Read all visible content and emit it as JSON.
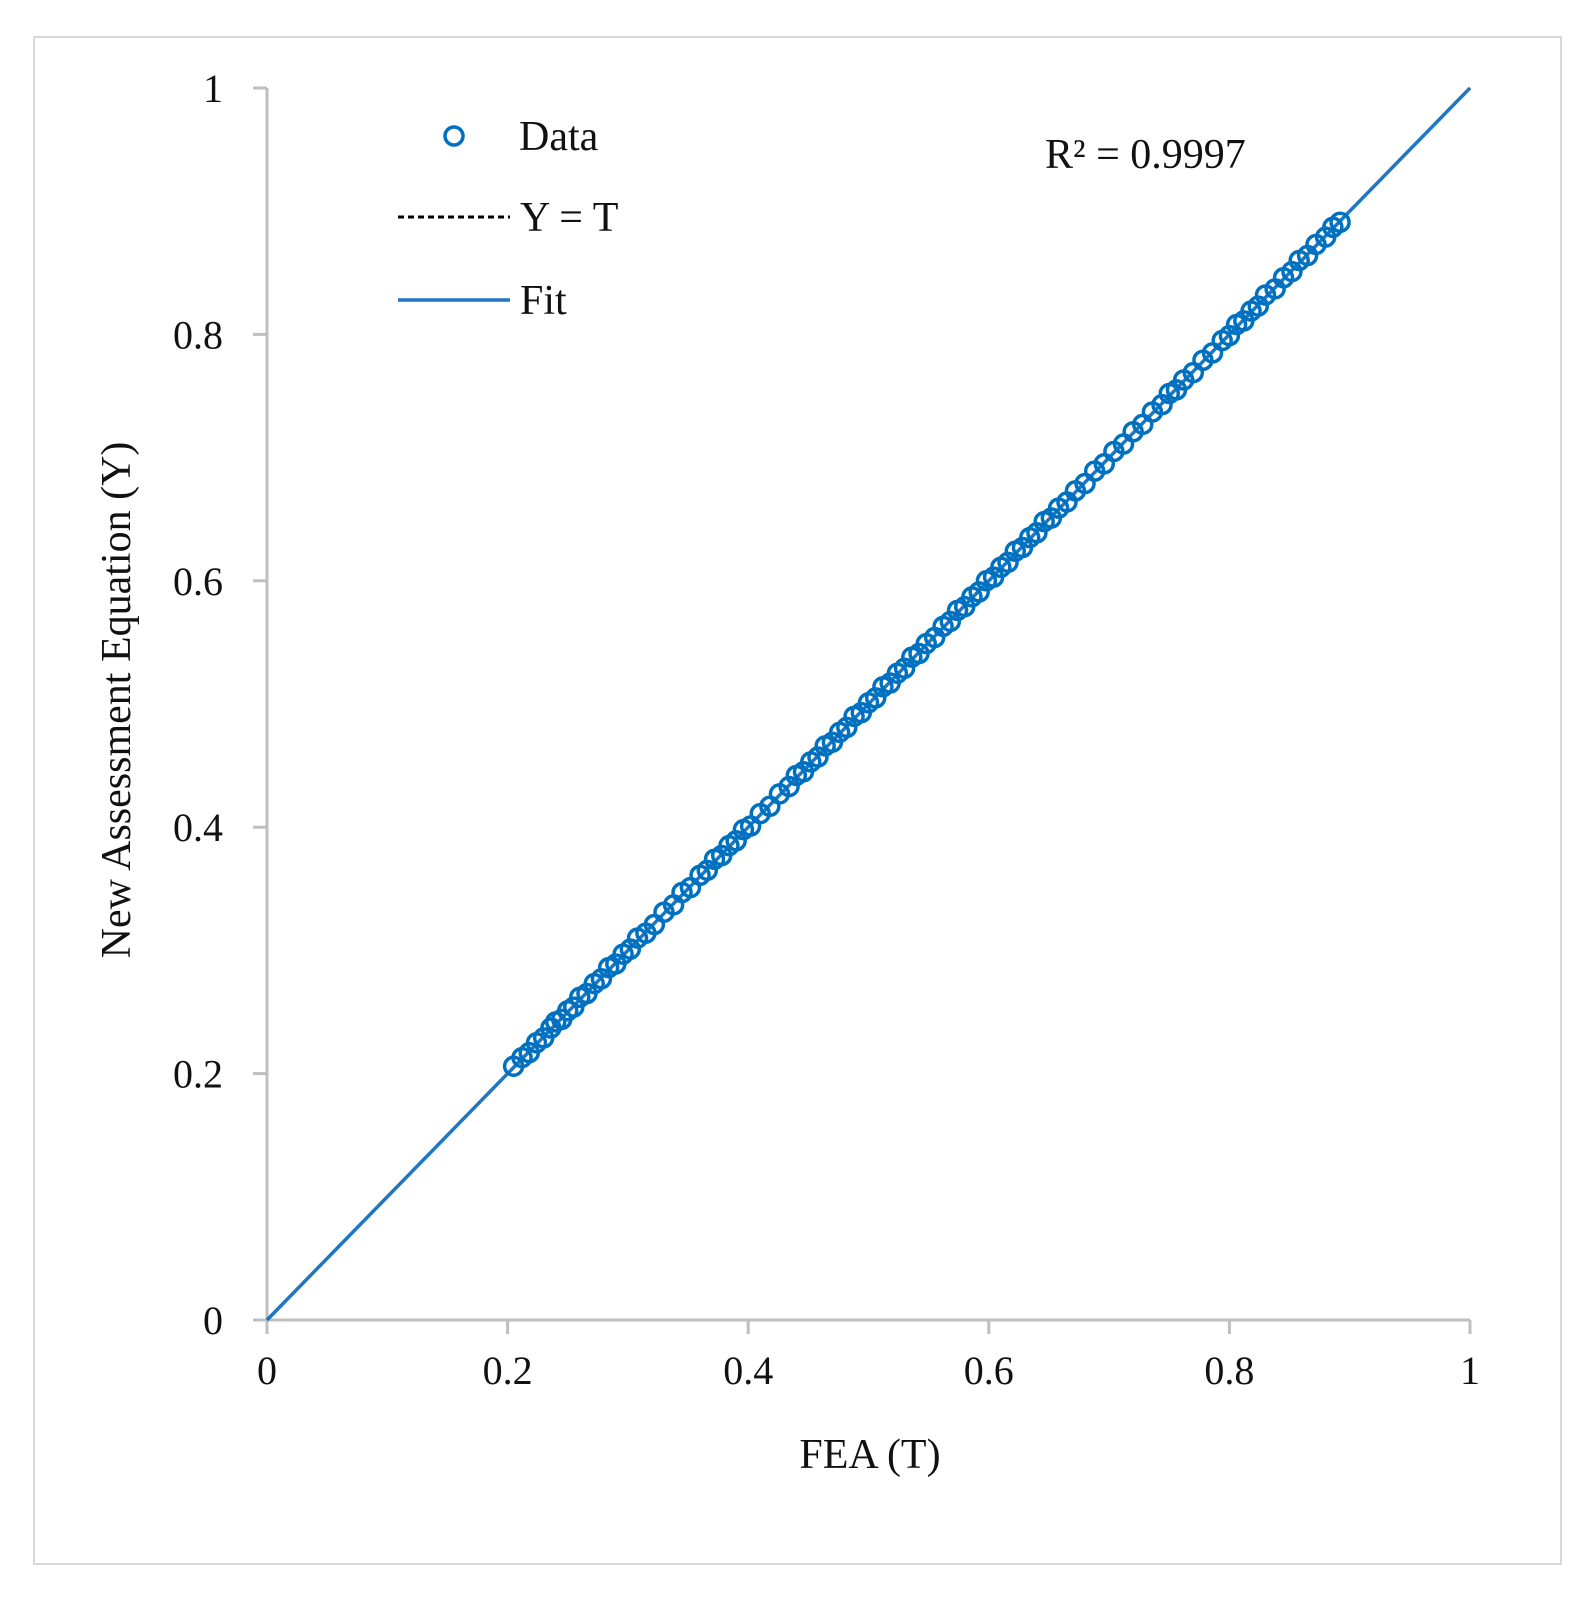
{
  "chart_data": {
    "type": "scatter",
    "title": "",
    "xlabel": "FEA (T)",
    "ylabel": "New Assessment Equation (Y)",
    "xlim": [
      0,
      1
    ],
    "ylim": [
      0,
      1
    ],
    "x_ticks": [
      "0",
      "0.2",
      "0.4",
      "0.6",
      "0.8",
      "1"
    ],
    "y_ticks": [
      "0",
      "0.2",
      "0.4",
      "0.6",
      "0.8",
      "1"
    ],
    "grid": false,
    "legend_position": "top-left",
    "annotation": "R² = 0.9997",
    "colors": {
      "data": "#0070c0",
      "fit": "#1f77c4",
      "reference": "#000000",
      "axis": "#bfbfbf"
    },
    "series": [
      {
        "name": "Data",
        "kind": "scatter",
        "marker": "open-circle",
        "points": [
          [
            0.205,
            0.206
          ],
          [
            0.212,
            0.213
          ],
          [
            0.218,
            0.217
          ],
          [
            0.224,
            0.225
          ],
          [
            0.23,
            0.229
          ],
          [
            0.236,
            0.237
          ],
          [
            0.24,
            0.242
          ],
          [
            0.245,
            0.244
          ],
          [
            0.25,
            0.251
          ],
          [
            0.255,
            0.254
          ],
          [
            0.26,
            0.262
          ],
          [
            0.266,
            0.265
          ],
          [
            0.272,
            0.273
          ],
          [
            0.278,
            0.277
          ],
          [
            0.284,
            0.286
          ],
          [
            0.29,
            0.289
          ],
          [
            0.296,
            0.297
          ],
          [
            0.302,
            0.301
          ],
          [
            0.308,
            0.31
          ],
          [
            0.315,
            0.314
          ],
          [
            0.322,
            0.321
          ],
          [
            0.33,
            0.331
          ],
          [
            0.338,
            0.337
          ],
          [
            0.345,
            0.347
          ],
          [
            0.352,
            0.351
          ],
          [
            0.36,
            0.361
          ],
          [
            0.366,
            0.365
          ],
          [
            0.372,
            0.374
          ],
          [
            0.378,
            0.377
          ],
          [
            0.384,
            0.385
          ],
          [
            0.39,
            0.389
          ],
          [
            0.396,
            0.398
          ],
          [
            0.402,
            0.401
          ],
          [
            0.41,
            0.411
          ],
          [
            0.418,
            0.417
          ],
          [
            0.426,
            0.427
          ],
          [
            0.434,
            0.433
          ],
          [
            0.44,
            0.442
          ],
          [
            0.446,
            0.445
          ],
          [
            0.452,
            0.453
          ],
          [
            0.458,
            0.457
          ],
          [
            0.464,
            0.466
          ],
          [
            0.47,
            0.469
          ],
          [
            0.476,
            0.477
          ],
          [
            0.482,
            0.481
          ],
          [
            0.488,
            0.49
          ],
          [
            0.494,
            0.493
          ],
          [
            0.5,
            0.501
          ],
          [
            0.506,
            0.505
          ],
          [
            0.512,
            0.514
          ],
          [
            0.518,
            0.517
          ],
          [
            0.524,
            0.525
          ],
          [
            0.53,
            0.529
          ],
          [
            0.536,
            0.538
          ],
          [
            0.542,
            0.541
          ],
          [
            0.548,
            0.549
          ],
          [
            0.555,
            0.554
          ],
          [
            0.562,
            0.563
          ],
          [
            0.568,
            0.567
          ],
          [
            0.574,
            0.576
          ],
          [
            0.58,
            0.579
          ],
          [
            0.586,
            0.587
          ],
          [
            0.592,
            0.591
          ],
          [
            0.598,
            0.6
          ],
          [
            0.604,
            0.603
          ],
          [
            0.61,
            0.611
          ],
          [
            0.616,
            0.615
          ],
          [
            0.622,
            0.624
          ],
          [
            0.628,
            0.627
          ],
          [
            0.634,
            0.635
          ],
          [
            0.64,
            0.639
          ],
          [
            0.646,
            0.648
          ],
          [
            0.652,
            0.651
          ],
          [
            0.658,
            0.659
          ],
          [
            0.665,
            0.664
          ],
          [
            0.672,
            0.673
          ],
          [
            0.68,
            0.679
          ],
          [
            0.688,
            0.689
          ],
          [
            0.696,
            0.695
          ],
          [
            0.704,
            0.705
          ],
          [
            0.712,
            0.711
          ],
          [
            0.72,
            0.721
          ],
          [
            0.728,
            0.727
          ],
          [
            0.736,
            0.737
          ],
          [
            0.744,
            0.743
          ],
          [
            0.75,
            0.752
          ],
          [
            0.756,
            0.755
          ],
          [
            0.762,
            0.763
          ],
          [
            0.77,
            0.769
          ],
          [
            0.778,
            0.779
          ],
          [
            0.786,
            0.785
          ],
          [
            0.794,
            0.795
          ],
          [
            0.8,
            0.799
          ],
          [
            0.806,
            0.808
          ],
          [
            0.812,
            0.811
          ],
          [
            0.818,
            0.819
          ],
          [
            0.824,
            0.823
          ],
          [
            0.83,
            0.832
          ],
          [
            0.838,
            0.837
          ],
          [
            0.845,
            0.846
          ],
          [
            0.852,
            0.851
          ],
          [
            0.858,
            0.86
          ],
          [
            0.865,
            0.864
          ],
          [
            0.872,
            0.873
          ],
          [
            0.88,
            0.879
          ],
          [
            0.886,
            0.887
          ],
          [
            0.892,
            0.891
          ]
        ]
      },
      {
        "name": "Y = T",
        "kind": "line",
        "style": "dashed",
        "x": [
          0,
          1
        ],
        "y": [
          0,
          1
        ]
      },
      {
        "name": "Fit",
        "kind": "line",
        "style": "solid",
        "x": [
          0,
          1
        ],
        "y": [
          0,
          1
        ]
      }
    ]
  }
}
